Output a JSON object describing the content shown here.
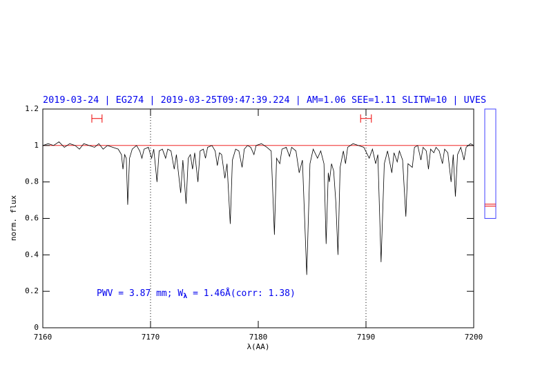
{
  "chart_data": {
    "type": "line",
    "title": "2019-03-24 | EG274 | 2019-03-25T09:47:39.224 | AM=1.06 SEE=1.11 SLITW=10 | UVES",
    "xlabel": "λ(AA)",
    "ylabel": "norm. flux",
    "annotation": {
      "parts": [
        "PWV = 3.87 mm; W",
        "λ",
        " = 1.46Å(corr: 1.38)"
      ],
      "x": 7165,
      "y": 0.19,
      "color": "#0000ee"
    },
    "title_color": "#0000ee",
    "color": "#000000",
    "xlim": [
      7160,
      7200
    ],
    "ylim": [
      0,
      1.2
    ],
    "xticks": [
      7160,
      7170,
      7180,
      7190,
      7200
    ],
    "yticks": [
      0,
      0.2,
      0.4,
      0.6,
      0.8,
      1,
      1.2
    ],
    "hline": {
      "value": 1,
      "color": "#ee0000"
    },
    "vlines": [
      7170,
      7190
    ],
    "intervals": [
      {
        "x": [
          7164.55,
          7165.5
        ],
        "y": 1.148
      },
      {
        "x": [
          7189.5,
          7190.5
        ],
        "y": 1.148
      }
    ],
    "interval_color": "#ee0000",
    "side_panel": {
      "ylim": [
        0.6,
        1.2
      ],
      "lines": [
        0.667,
        0.678
      ],
      "color": "#4040ff",
      "line_color": "#ee0000"
    },
    "x": [
      7160,
      7160.5,
      7161,
      7161.5,
      7162,
      7162.5,
      7163,
      7163.4,
      7163.8,
      7164.3,
      7164.8,
      7165.2,
      7165.6,
      7166,
      7166.5,
      7167,
      7167.3,
      7167.44,
      7167.6,
      7167.75,
      7167.88,
      7168.05,
      7168.3,
      7168.7,
      7169,
      7169.2,
      7169.4,
      7169.8,
      7170.1,
      7170.3,
      7170.6,
      7170.8,
      7171.1,
      7171.4,
      7171.6,
      7171.9,
      7172.2,
      7172.4,
      7172.8,
      7173,
      7173.3,
      7173.5,
      7173.7,
      7173.9,
      7174.1,
      7174.4,
      7174.6,
      7174.9,
      7175.1,
      7175.3,
      7175.7,
      7176,
      7176.2,
      7176.4,
      7176.6,
      7176.9,
      7177.1,
      7177.4,
      7177.6,
      7177.9,
      7178.2,
      7178.5,
      7178.7,
      7179,
      7179.3,
      7179.6,
      7179.8,
      7180.3,
      7180.8,
      7181.2,
      7181.5,
      7181.7,
      7182,
      7182.2,
      7182.6,
      7182.9,
      7183.1,
      7183.5,
      7183.8,
      7184.1,
      7184.5,
      7184.8,
      7185.1,
      7185.5,
      7185.8,
      7186.1,
      7186.3,
      7186.5,
      7186.6,
      7186.8,
      7187,
      7187.2,
      7187.4,
      7187.6,
      7187.9,
      7188.1,
      7188.3,
      7188.8,
      7189.3,
      7189.8,
      7190.3,
      7190.6,
      7190.9,
      7191.1,
      7191.4,
      7191.7,
      7192,
      7192.4,
      7192.6,
      7192.9,
      7193.1,
      7193.4,
      7193.7,
      7193.9,
      7194.3,
      7194.5,
      7194.8,
      7195.1,
      7195.3,
      7195.6,
      7195.8,
      7196,
      7196.3,
      7196.5,
      7196.8,
      7197.1,
      7197.3,
      7197.6,
      7197.9,
      7198.1,
      7198.3,
      7198.5,
      7198.8,
      7199.1,
      7199.3,
      7199.7,
      7200
    ],
    "values": [
      1.0,
      1.01,
      1.0,
      1.02,
      0.99,
      1.01,
      1.0,
      0.98,
      1.01,
      1.0,
      0.99,
      1.01,
      0.98,
      1.0,
      0.99,
      0.98,
      0.95,
      0.87,
      0.95,
      0.93,
      0.675,
      0.93,
      0.98,
      1.0,
      0.97,
      0.93,
      0.98,
      0.99,
      0.93,
      0.98,
      0.8,
      0.97,
      0.98,
      0.93,
      0.98,
      0.97,
      0.87,
      0.95,
      0.74,
      0.92,
      0.68,
      0.93,
      0.95,
      0.87,
      0.96,
      0.8,
      0.97,
      0.98,
      0.93,
      0.99,
      1.0,
      0.97,
      0.89,
      0.96,
      0.95,
      0.82,
      0.9,
      0.57,
      0.92,
      0.98,
      0.97,
      0.88,
      0.98,
      1.0,
      0.99,
      0.95,
      1.0,
      1.01,
      0.99,
      0.97,
      0.51,
      0.93,
      0.9,
      0.98,
      0.99,
      0.94,
      0.99,
      0.97,
      0.85,
      0.92,
      0.29,
      0.9,
      0.98,
      0.93,
      0.97,
      0.9,
      0.46,
      0.85,
      0.8,
      0.9,
      0.86,
      0.69,
      0.4,
      0.88,
      0.97,
      0.9,
      0.99,
      1.01,
      1.0,
      0.99,
      0.93,
      0.98,
      0.9,
      0.95,
      0.36,
      0.9,
      0.97,
      0.85,
      0.96,
      0.91,
      0.97,
      0.92,
      0.61,
      0.9,
      0.88,
      0.99,
      1.0,
      0.92,
      0.99,
      0.97,
      0.87,
      0.98,
      0.96,
      0.99,
      0.97,
      0.9,
      0.98,
      0.96,
      0.8,
      0.95,
      0.72,
      0.95,
      0.99,
      0.92,
      0.99,
      1.01,
      1.0
    ]
  }
}
